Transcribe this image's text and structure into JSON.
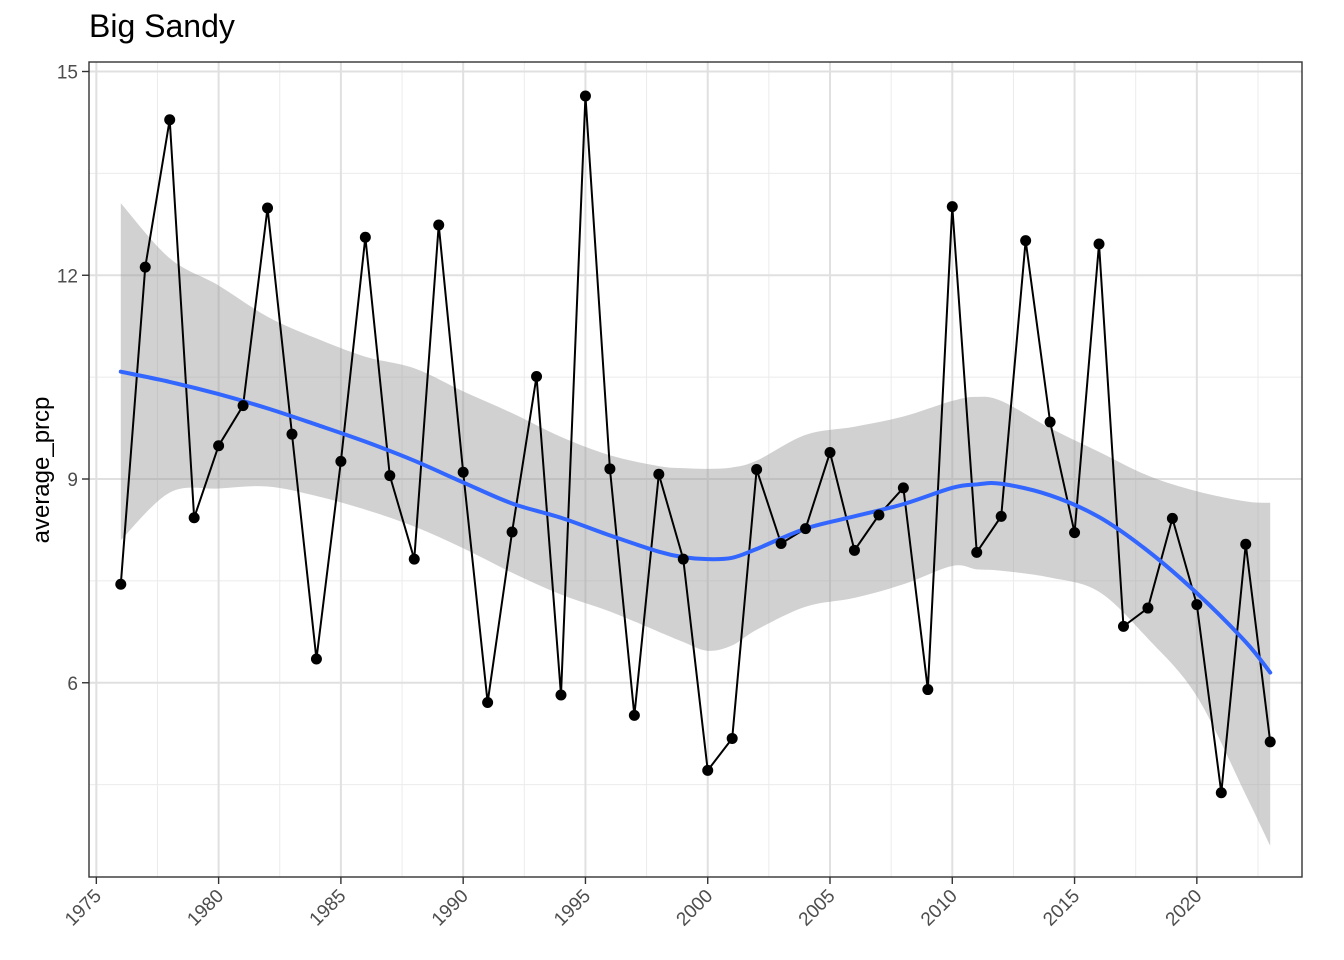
{
  "chart_data": {
    "type": "line",
    "title": "Big Sandy",
    "xlabel": "",
    "ylabel": "average_prcp",
    "xlim": [
      1974.7,
      2024.3
    ],
    "ylim": [
      3.14,
      15.14
    ],
    "x_ticks": [
      1975,
      1980,
      1985,
      1990,
      1995,
      2000,
      2005,
      2010,
      2015,
      2020
    ],
    "x_tick_labels": [
      "1975",
      "1980",
      "1985",
      "1990",
      "1995",
      "2000",
      "2005",
      "2010",
      "2015",
      "2020"
    ],
    "y_ticks": [
      6,
      9,
      12,
      15
    ],
    "y_tick_labels": [
      "6",
      "9",
      "12",
      "15"
    ],
    "grid": true,
    "legend": "none",
    "series": [
      {
        "kind": "observed",
        "color": "#000000",
        "x": [
          1976,
          1977,
          1978,
          1979,
          1980,
          1981,
          1982,
          1983,
          1984,
          1985,
          1986,
          1987,
          1988,
          1989,
          1990,
          1991,
          1992,
          1993,
          1994,
          1995,
          1996,
          1997,
          1998,
          1999,
          2000,
          2001,
          2002,
          2003,
          2004,
          2005,
          2006,
          2007,
          2008,
          2009,
          2010,
          2011,
          2012,
          2013,
          2014,
          2015,
          2016,
          2017,
          2018,
          2019,
          2020,
          2021,
          2022,
          2023
        ],
        "y": [
          7.45,
          12.12,
          14.29,
          8.43,
          9.49,
          10.08,
          12.99,
          9.66,
          6.35,
          9.26,
          12.56,
          9.05,
          7.82,
          12.74,
          9.1,
          5.71,
          8.22,
          10.51,
          5.82,
          14.64,
          9.15,
          5.52,
          9.07,
          7.82,
          4.71,
          5.18,
          9.14,
          8.05,
          8.27,
          9.39,
          7.95,
          8.47,
          8.87,
          5.9,
          13.01,
          7.92,
          8.45,
          12.51,
          9.84,
          8.21,
          12.46,
          6.83,
          7.1,
          8.42,
          7.15,
          4.38,
          8.04,
          5.13
        ]
      },
      {
        "kind": "smooth",
        "color": "#3366ff",
        "band_color": "#999999",
        "x": [
          1976,
          1978,
          1980,
          1982,
          1984,
          1986,
          1988,
          1990,
          1992,
          1994,
          1996,
          1998,
          1999,
          2000,
          2001,
          2002,
          2004,
          2006,
          2008,
          2010,
          2011,
          2012,
          2014,
          2016,
          2018,
          2020,
          2022,
          2023
        ],
        "y": [
          10.58,
          10.43,
          10.25,
          10.04,
          9.8,
          9.55,
          9.27,
          8.95,
          8.64,
          8.43,
          8.17,
          7.93,
          7.85,
          7.82,
          7.84,
          7.97,
          8.27,
          8.45,
          8.63,
          8.87,
          8.92,
          8.93,
          8.76,
          8.44,
          7.94,
          7.32,
          6.6,
          6.15
        ],
        "lower": [
          8.1,
          8.8,
          8.86,
          8.89,
          8.75,
          8.55,
          8.3,
          7.98,
          7.62,
          7.3,
          7.05,
          6.75,
          6.6,
          6.47,
          6.55,
          6.78,
          7.12,
          7.25,
          7.45,
          7.72,
          7.67,
          7.65,
          7.55,
          7.34,
          6.65,
          5.8,
          4.35,
          3.6
        ],
        "upper": [
          13.06,
          12.25,
          11.85,
          11.39,
          11.07,
          10.8,
          10.63,
          10.29,
          9.97,
          9.62,
          9.35,
          9.19,
          9.16,
          9.15,
          9.17,
          9.27,
          9.65,
          9.77,
          9.92,
          10.15,
          10.21,
          10.15,
          9.75,
          9.4,
          9.05,
          8.82,
          8.67,
          8.65
        ]
      }
    ]
  }
}
